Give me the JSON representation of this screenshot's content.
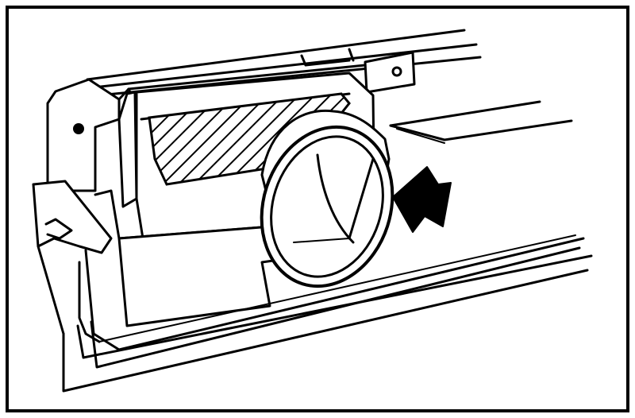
{
  "figure": {
    "type": "technical-line-illustration",
    "subject": "dashboard-vent-outlet",
    "icons": [
      "pointer-arrow-icon"
    ],
    "colors": {
      "ink": "#000000",
      "paper": "#ffffff"
    }
  }
}
